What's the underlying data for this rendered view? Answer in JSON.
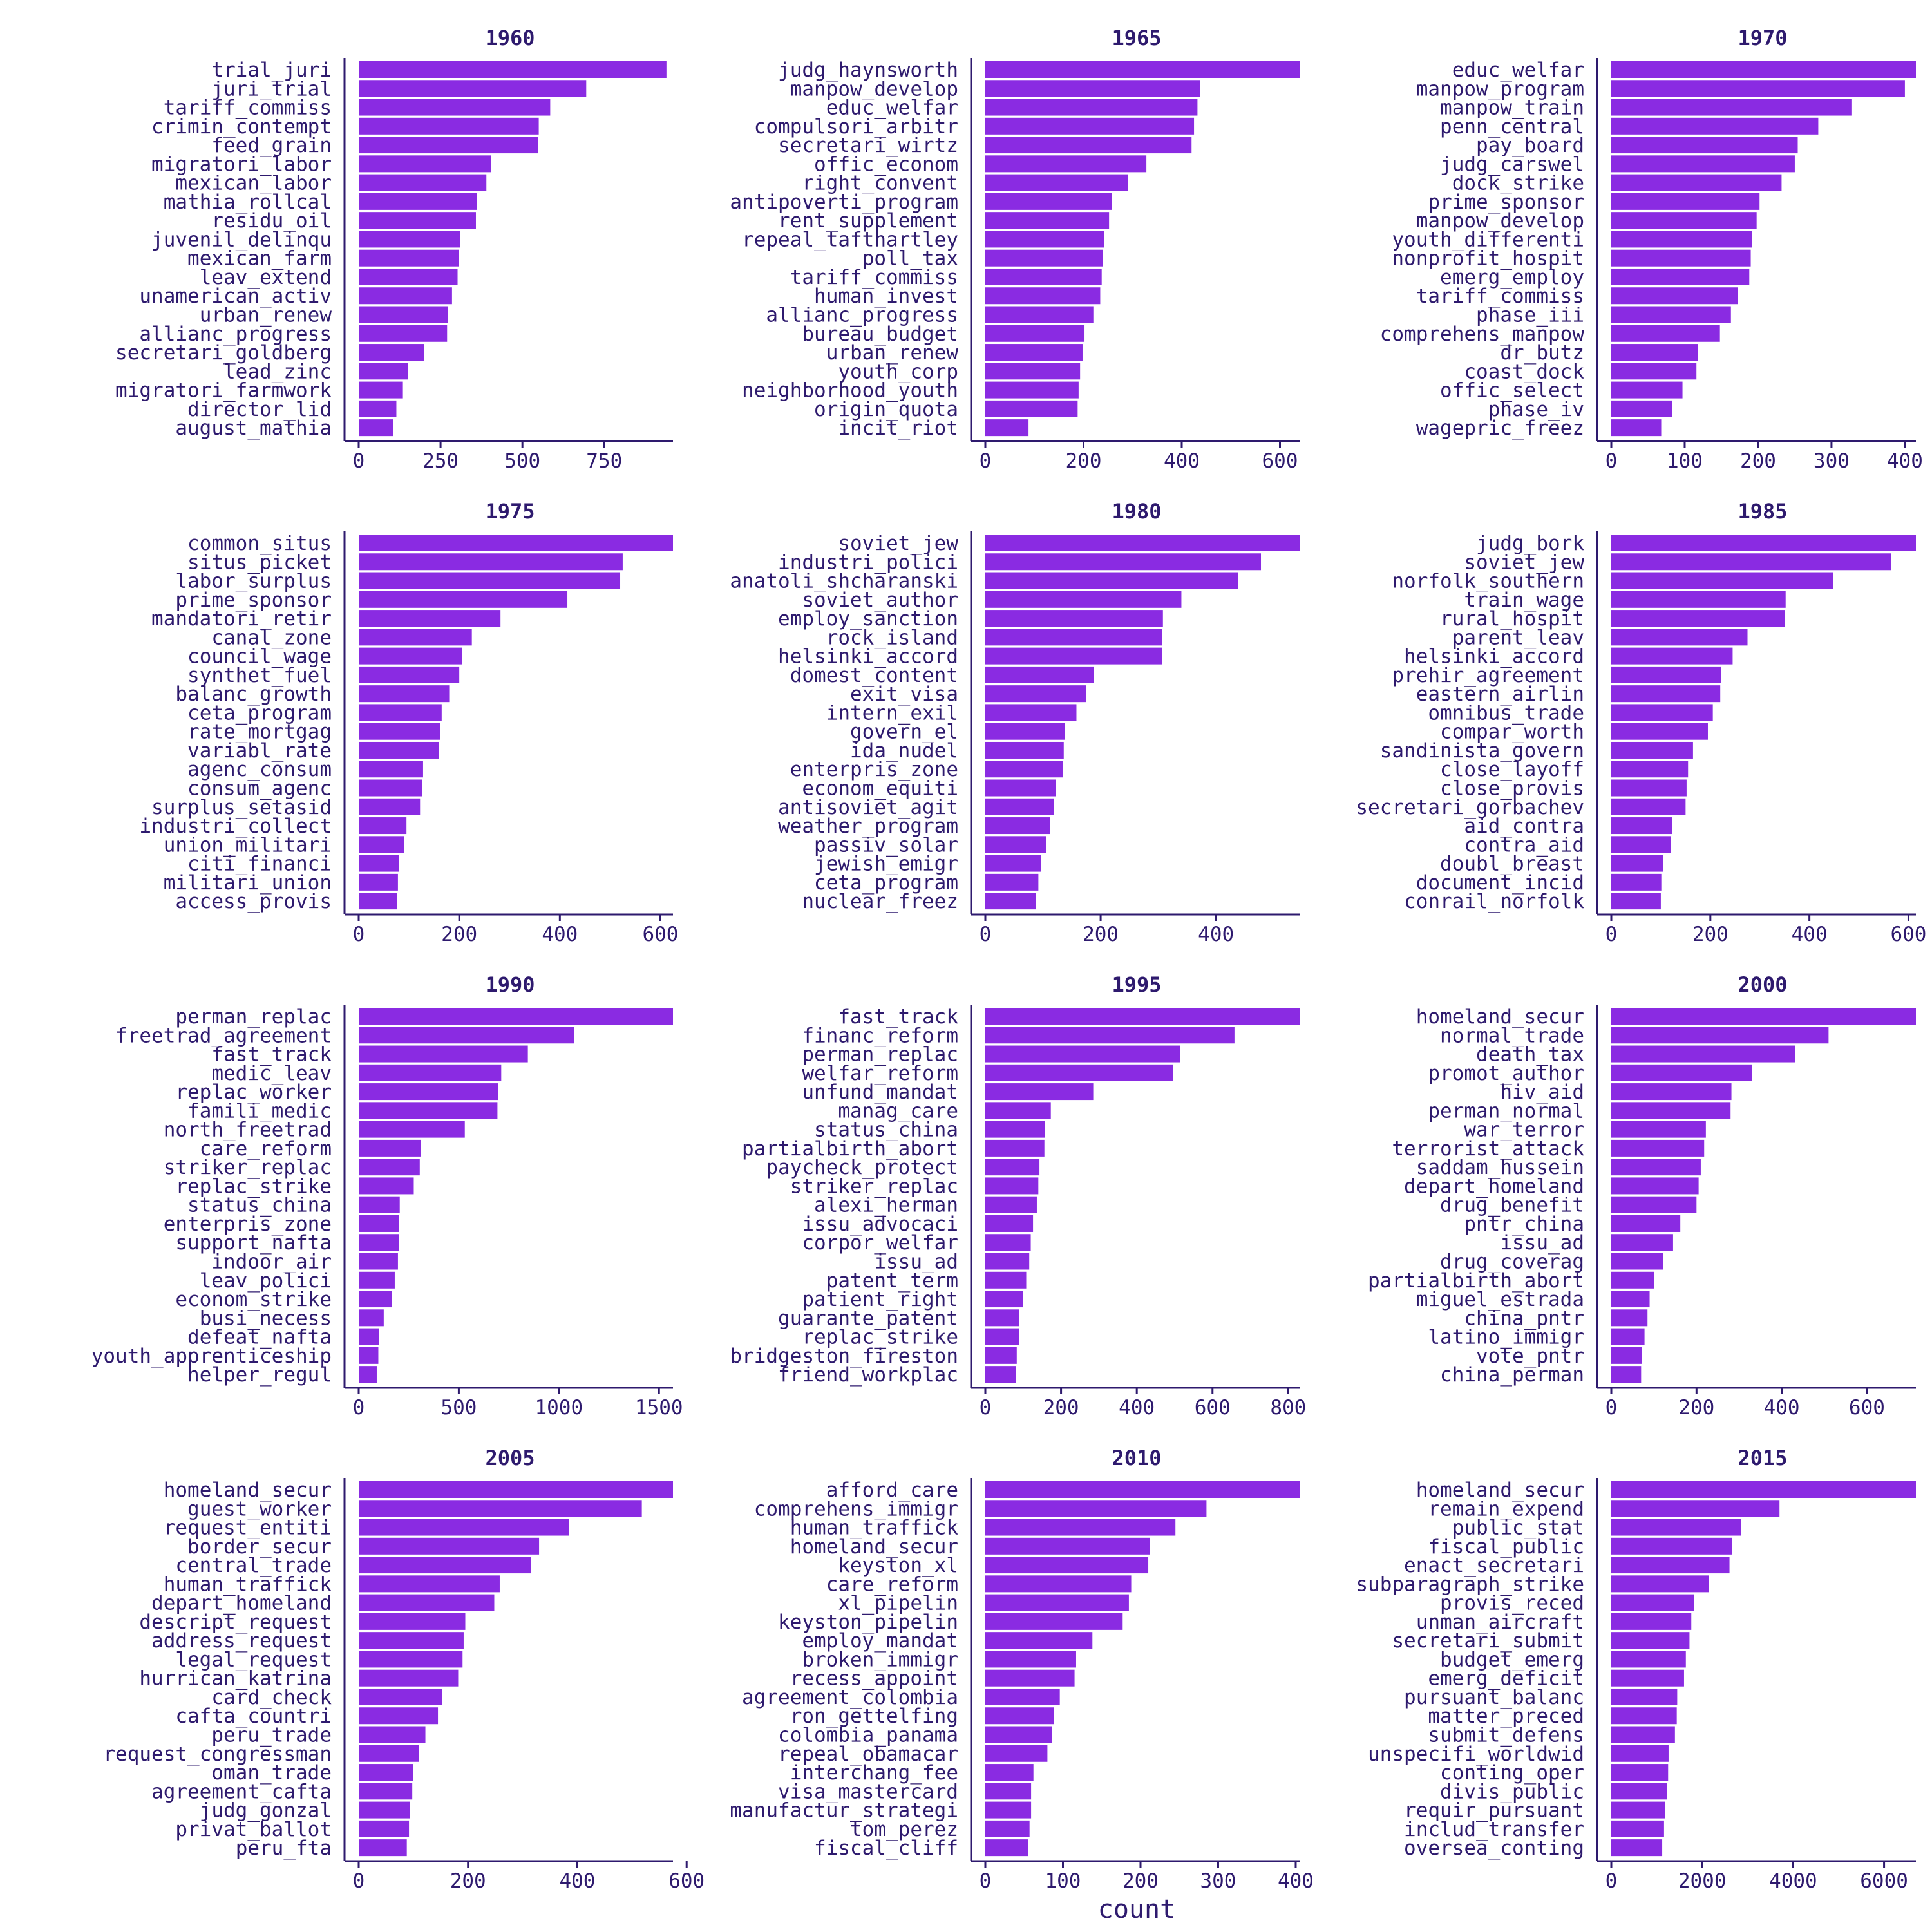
{
  "colors": {
    "bar": "#8a2be2",
    "text": "#2e1a6e",
    "background": "#ffffff"
  },
  "chart_data": {
    "type": "bar",
    "orientation": "horizontal",
    "xlabel": "count",
    "ylabel": "",
    "grid": false,
    "facet_layout": {
      "rows": 4,
      "cols": 3
    },
    "facets": [
      {
        "title": "1960",
        "xlim": [
          0,
          960
        ],
        "ticks": [
          0,
          250,
          500,
          750
        ],
        "categories": [
          "trial_juri",
          "juri_trial",
          "tariff_commiss",
          "crimin_contempt",
          "feed_grain",
          "migratori_labor",
          "mexican_labor",
          "mathia_rollcal",
          "residu_oil",
          "juvenil_delinqu",
          "mexican_farm",
          "leav_extend",
          "unamerican_activ",
          "urban_renew",
          "allianc_progress",
          "secretari_goldberg",
          "lead_zinc",
          "migratori_farmwork",
          "director_lid",
          "august_mathia"
        ],
        "values": [
          940,
          695,
          585,
          550,
          547,
          405,
          390,
          360,
          358,
          310,
          305,
          302,
          285,
          272,
          270,
          200,
          150,
          135,
          115,
          105
        ]
      },
      {
        "title": "1965",
        "xlim": [
          0,
          640
        ],
        "ticks": [
          0,
          200,
          400,
          600
        ],
        "categories": [
          "judg_haynsworth",
          "manpow_develop",
          "educ_welfar",
          "compulsori_arbitr",
          "secretari_wirtz",
          "offic_econom",
          "right_convent",
          "antipoverti_program",
          "rent_supplement",
          "repeal_tafthartley",
          "poll_tax",
          "tariff_commiss",
          "human_invest",
          "allianc_progress",
          "bureau_budget",
          "urban_renew",
          "youth_corp",
          "neighborhood_youth",
          "origin_quota",
          "incit_riot"
        ],
        "values": [
          640,
          438,
          432,
          425,
          420,
          328,
          290,
          258,
          252,
          242,
          240,
          237,
          234,
          220,
          202,
          198,
          193,
          190,
          188,
          88
        ]
      },
      {
        "title": "1970",
        "xlim": [
          0,
          415
        ],
        "ticks": [
          0,
          100,
          200,
          300,
          400
        ],
        "categories": [
          "educ_welfar",
          "manpow_program",
          "manpow_train",
          "penn_central",
          "pay_board",
          "judg_carswel",
          "dock_strike",
          "prime_sponsor",
          "manpow_develop",
          "youth_differenti",
          "nonprofit_hospit",
          "emerg_employ",
          "tariff_commiss",
          "phase_iii",
          "comprehens_manpow",
          "dr_butz",
          "coast_dock",
          "offic_select",
          "phase_iv",
          "wagepric_freez"
        ],
        "values": [
          415,
          400,
          328,
          282,
          254,
          250,
          232,
          202,
          198,
          192,
          190,
          188,
          172,
          163,
          148,
          118,
          116,
          97,
          83,
          68
        ]
      },
      {
        "title": "1975",
        "xlim": [
          0,
          625
        ],
        "ticks": [
          0,
          200,
          400,
          600
        ],
        "categories": [
          "common_situs",
          "situs_picket",
          "labor_surplus",
          "prime_sponsor",
          "mandatori_retir",
          "canal_zone",
          "council_wage",
          "synthet_fuel",
          "balanc_growth",
          "ceta_program",
          "rate_mortgag",
          "variabl_rate",
          "agenc_consum",
          "consum_agenc",
          "surplus_setasid",
          "industri_collect",
          "union_militari",
          "citi_financi",
          "militari_union",
          "access_provis"
        ],
        "values": [
          625,
          525,
          520,
          415,
          282,
          225,
          205,
          200,
          180,
          165,
          162,
          160,
          128,
          126,
          122,
          95,
          90,
          80,
          78,
          76
        ]
      },
      {
        "title": "1980",
        "xlim": [
          0,
          545
        ],
        "ticks": [
          0,
          200,
          400
        ],
        "categories": [
          "soviet_jew",
          "industri_polici",
          "anatoli_shcharanski",
          "soviet_author",
          "employ_sanction",
          "rock_island",
          "helsinki_accord",
          "domest_content",
          "exit_visa",
          "intern_exil",
          "govern_el",
          "ida_nudel",
          "enterpris_zone",
          "econom_equiti",
          "antisoviet_agit",
          "weather_program",
          "passiv_solar",
          "jewish_emigr",
          "ceta_program",
          "nuclear_freez"
        ],
        "values": [
          545,
          478,
          438,
          340,
          308,
          307,
          306,
          188,
          175,
          158,
          138,
          136,
          134,
          122,
          119,
          112,
          106,
          97,
          92,
          88
        ]
      },
      {
        "title": "1985",
        "xlim": [
          0,
          615
        ],
        "ticks": [
          0,
          200,
          400,
          600
        ],
        "categories": [
          "judg_bork",
          "soviet_jew",
          "norfolk_southern",
          "train_wage",
          "rural_hospit",
          "parent_leav",
          "helsinki_accord",
          "prehir_agreement",
          "eastern_airlin",
          "omnibus_trade",
          "compar_worth",
          "sandinista_govern",
          "close_layoff",
          "close_provis",
          "secretari_gorbachev",
          "aid_contra",
          "contra_aid",
          "doubl_breast",
          "document_incid",
          "conrail_norfolk"
        ],
        "values": [
          615,
          565,
          448,
          352,
          350,
          275,
          245,
          222,
          220,
          205,
          195,
          165,
          155,
          152,
          150,
          123,
          120,
          105,
          101,
          100
        ]
      },
      {
        "title": "1990",
        "xlim": [
          0,
          1570
        ],
        "ticks": [
          0,
          500,
          1000,
          1500
        ],
        "categories": [
          "perman_replac",
          "freetrad_agreement",
          "fast_track",
          "medic_leav",
          "replac_worker",
          "famili_medic",
          "north_freetrad",
          "care_reform",
          "striker_replac",
          "replac_strike",
          "status_china",
          "enterpris_zone",
          "support_nafta",
          "indoor_air",
          "leav_polici",
          "econom_strike",
          "busi_necess",
          "defeat_nafta",
          "youth_apprenticeship",
          "helper_regul"
        ],
        "values": [
          1570,
          1075,
          845,
          712,
          695,
          693,
          530,
          310,
          305,
          275,
          205,
          202,
          200,
          196,
          180,
          165,
          125,
          100,
          98,
          90
        ]
      },
      {
        "title": "1995",
        "xlim": [
          0,
          830
        ],
        "ticks": [
          0,
          200,
          400,
          600,
          800
        ],
        "categories": [
          "fast_track",
          "financ_reform",
          "perman_replac",
          "welfar_reform",
          "unfund_mandat",
          "manag_care",
          "status_china",
          "partialbirth_abort",
          "paycheck_protect",
          "striker_replac",
          "alexi_herman",
          "issu_advocaci",
          "corpor_welfar",
          "issu_ad",
          "patent_term",
          "patient_right",
          "guarante_patent",
          "replac_strike",
          "bridgeston_fireston",
          "friend_workplac"
        ],
        "values": [
          830,
          658,
          515,
          495,
          285,
          173,
          158,
          156,
          143,
          140,
          136,
          126,
          120,
          116,
          108,
          100,
          90,
          89,
          83,
          80
        ]
      },
      {
        "title": "2000",
        "xlim": [
          0,
          715
        ],
        "ticks": [
          0,
          200,
          400,
          600
        ],
        "categories": [
          "homeland_secur",
          "normal_trade",
          "death_tax",
          "promot_author",
          "hiv_aid",
          "perman_normal",
          "war_terror",
          "terrorist_attack",
          "saddam_hussein",
          "depart_homeland",
          "drug_benefit",
          "pntr_china",
          "issu_ad",
          "drug_coverag",
          "partialbirth_abort",
          "miguel_estrada",
          "china_pntr",
          "latino_immigr",
          "vote_pntr",
          "china_perman"
        ],
        "values": [
          715,
          510,
          432,
          330,
          282,
          280,
          222,
          218,
          210,
          205,
          200,
          162,
          145,
          122,
          100,
          90,
          85,
          78,
          72,
          70
        ]
      },
      {
        "title": "2005",
        "xlim": [
          0,
          575
        ],
        "ticks": [
          0,
          200,
          400,
          600
        ],
        "categories": [
          "homeland_secur",
          "guest_worker",
          "request_entiti",
          "border_secur",
          "central_trade",
          "human_traffick",
          "depart_homeland",
          "descript_request",
          "address_request",
          "legal_request",
          "hurrican_katrina",
          "card_check",
          "cafta_countri",
          "peru_trade",
          "request_congressman",
          "oman_trade",
          "agreement_cafta",
          "judg_gonzal",
          "privat_ballot",
          "peru_fta"
        ],
        "values": [
          575,
          518,
          385,
          330,
          315,
          258,
          248,
          195,
          192,
          190,
          182,
          152,
          145,
          122,
          110,
          100,
          98,
          94,
          92,
          88
        ]
      },
      {
        "title": "2010",
        "xlim": [
          0,
          405
        ],
        "ticks": [
          0,
          100,
          200,
          300,
          400
        ],
        "categories": [
          "afford_care",
          "comprehens_immigr",
          "human_traffick",
          "homeland_secur",
          "keyston_xl",
          "care_reform",
          "xl_pipelin",
          "keyston_pipelin",
          "employ_mandat",
          "broken_immigr",
          "recess_appoint",
          "agreement_colombia",
          "ron_gettelfing",
          "colombia_panama",
          "repeal_obamacar",
          "interchang_fee",
          "visa_mastercard",
          "manufactur_strategi",
          "tom_perez",
          "fiscal_cliff"
        ],
        "values": [
          405,
          285,
          245,
          212,
          210,
          188,
          185,
          177,
          138,
          117,
          115,
          96,
          88,
          86,
          80,
          62,
          59,
          59,
          57,
          55
        ]
      },
      {
        "title": "2015",
        "xlim": [
          0,
          6700
        ],
        "ticks": [
          0,
          2000,
          4000,
          6000
        ],
        "categories": [
          "homeland_secur",
          "remain_expend",
          "public_stat",
          "fiscal_public",
          "enact_secretari",
          "subparagraph_strike",
          "provis_reced",
          "unman_aircraft",
          "secretari_submit",
          "budget_emerg",
          "emerg_deficit",
          "pursuant_balanc",
          "matter_preced",
          "submit_defens",
          "unspecifi_worldwid",
          "conting_oper",
          "divis_public",
          "requir_pursuant",
          "includ_transfer",
          "oversea_conting"
        ],
        "values": [
          6700,
          3700,
          2850,
          2650,
          2600,
          2150,
          1820,
          1760,
          1720,
          1640,
          1600,
          1450,
          1440,
          1400,
          1260,
          1250,
          1220,
          1180,
          1160,
          1120
        ]
      }
    ]
  }
}
